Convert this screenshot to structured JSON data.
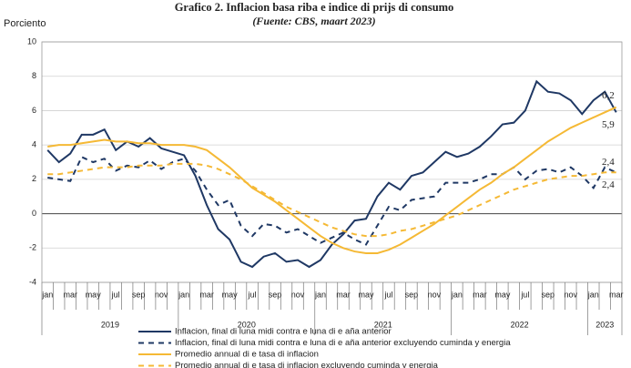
{
  "chart_data": {
    "type": "line",
    "title": "Grafico 2. Inflacion basa riba e indice di prijs di consumo",
    "subtitle": "(Fuente: CBS, maart 2023)",
    "y_label": "Porciento",
    "categories": [
      "jan",
      null,
      "mar",
      null,
      "may",
      null,
      "jul",
      null,
      "sep",
      null,
      "nov",
      null,
      "jan",
      null,
      "mar",
      null,
      "may",
      null,
      "jul",
      null,
      "sep",
      null,
      "nov",
      null,
      "jan",
      null,
      "mar",
      null,
      "may",
      null,
      "jul",
      null,
      "sep",
      null,
      "nov",
      null,
      "jan",
      null,
      "mar",
      null,
      "may",
      null,
      "jul",
      null,
      "sep",
      null,
      "nov",
      null,
      "jan",
      null,
      "mar"
    ],
    "years": [
      "2019",
      "2020",
      "2021",
      "2022",
      "2023"
    ],
    "ylim": [
      -4,
      10
    ],
    "yticks": [
      -4,
      -2,
      0,
      2,
      4,
      6,
      8,
      10
    ],
    "grid": true,
    "series": [
      {
        "name": "Inflacion, final di luna midi contra e luna di e aña anterior",
        "color": "#1f3864",
        "dash": false,
        "values": [
          3.7,
          3.0,
          3.5,
          4.6,
          4.6,
          4.9,
          3.7,
          4.2,
          3.9,
          4.4,
          3.8,
          3.6,
          3.4,
          2.2,
          0.5,
          -0.9,
          -1.5,
          -2.8,
          -3.1,
          -2.5,
          -2.3,
          -2.8,
          -2.7,
          -3.1,
          -2.7,
          -1.8,
          -1.2,
          -0.4,
          -0.3,
          1.0,
          1.8,
          1.4,
          2.2,
          2.4,
          3.0,
          3.6,
          3.3,
          3.5,
          3.9,
          4.5,
          5.2,
          5.3,
          6.0,
          7.7,
          7.1,
          7.0,
          6.6,
          5.8,
          6.6,
          7.1,
          5.9
        ],
        "value_labels": [
          null,
          null,
          null,
          null,
          null,
          null,
          null,
          null,
          null,
          null,
          null,
          null,
          null,
          null,
          null,
          null,
          null,
          null,
          null,
          null,
          null,
          null,
          null,
          null,
          null,
          null,
          null,
          null,
          null,
          null,
          null,
          null,
          null,
          null,
          null,
          null,
          null,
          null,
          null,
          null,
          null,
          null,
          null,
          null,
          null,
          null,
          null,
          null,
          null,
          null,
          "5,9"
        ]
      },
      {
        "name": "Inflacion, final di luna midi contra e luna di e aña anterior excluyendo cuminda y energia",
        "color": "#1f3864",
        "dash": true,
        "values": [
          2.1,
          2.0,
          1.9,
          3.3,
          3.0,
          3.2,
          2.5,
          2.8,
          2.7,
          3.1,
          2.6,
          3.0,
          3.2,
          2.5,
          1.4,
          0.5,
          0.8,
          -0.7,
          -1.3,
          -0.6,
          -0.7,
          -1.1,
          -0.9,
          -1.3,
          -1.7,
          -1.4,
          -1.1,
          -1.5,
          -1.8,
          -0.7,
          0.4,
          0.2,
          0.8,
          0.9,
          1.0,
          1.8,
          1.8,
          1.8,
          2.0,
          2.3,
          2.3,
          2.7,
          2.0,
          2.5,
          2.6,
          2.4,
          2.7,
          2.2,
          1.5,
          2.7,
          2.4
        ],
        "value_labels": [
          null,
          null,
          null,
          null,
          null,
          null,
          null,
          null,
          null,
          null,
          null,
          null,
          null,
          null,
          null,
          null,
          null,
          null,
          null,
          null,
          null,
          null,
          null,
          null,
          null,
          null,
          null,
          null,
          null,
          null,
          null,
          null,
          null,
          null,
          null,
          null,
          null,
          null,
          null,
          null,
          null,
          null,
          null,
          null,
          null,
          null,
          null,
          null,
          null,
          null,
          "2,4"
        ]
      },
      {
        "name": "Promedio annual di e tasa di inflacion",
        "color": "#f5b935",
        "dash": false,
        "values": [
          3.9,
          4.0,
          4.0,
          4.1,
          4.2,
          4.3,
          4.2,
          4.2,
          4.1,
          4.1,
          4.0,
          4.0,
          4.0,
          3.9,
          3.7,
          3.2,
          2.7,
          2.1,
          1.5,
          1.1,
          0.7,
          0.2,
          -0.3,
          -0.8,
          -1.3,
          -1.7,
          -2.0,
          -2.2,
          -2.3,
          -2.3,
          -2.1,
          -1.8,
          -1.4,
          -1.0,
          -0.6,
          -0.1,
          0.4,
          0.9,
          1.4,
          1.8,
          2.3,
          2.7,
          3.2,
          3.7,
          4.2,
          4.6,
          5.0,
          5.3,
          5.6,
          5.9,
          6.2
        ],
        "value_labels": [
          null,
          null,
          null,
          null,
          null,
          null,
          null,
          null,
          null,
          null,
          null,
          null,
          null,
          null,
          null,
          null,
          null,
          null,
          null,
          null,
          null,
          null,
          null,
          null,
          null,
          null,
          null,
          null,
          null,
          null,
          null,
          null,
          null,
          null,
          null,
          null,
          null,
          null,
          null,
          null,
          null,
          null,
          null,
          null,
          null,
          null,
          null,
          null,
          null,
          null,
          "6,2"
        ]
      },
      {
        "name": "Promedio annual di e tasa di inflacion excluyendo cuminda y energia",
        "color": "#f5b935",
        "dash": true,
        "values": [
          2.3,
          2.3,
          2.4,
          2.5,
          2.6,
          2.7,
          2.7,
          2.7,
          2.8,
          2.8,
          2.8,
          2.9,
          2.9,
          2.9,
          2.8,
          2.6,
          2.3,
          2.0,
          1.6,
          1.2,
          0.8,
          0.4,
          0.1,
          -0.2,
          -0.5,
          -0.8,
          -1.0,
          -1.2,
          -1.3,
          -1.3,
          -1.2,
          -1.0,
          -0.9,
          -0.7,
          -0.5,
          -0.3,
          -0.1,
          0.2,
          0.5,
          0.8,
          1.1,
          1.4,
          1.6,
          1.8,
          2.0,
          2.1,
          2.2,
          2.2,
          2.3,
          2.4,
          2.4
        ],
        "value_labels": [
          null,
          null,
          null,
          null,
          null,
          null,
          null,
          null,
          null,
          null,
          null,
          null,
          null,
          null,
          null,
          null,
          null,
          null,
          null,
          null,
          null,
          null,
          null,
          null,
          null,
          null,
          null,
          null,
          null,
          null,
          null,
          null,
          null,
          null,
          null,
          null,
          null,
          null,
          null,
          null,
          null,
          null,
          null,
          null,
          null,
          null,
          null,
          null,
          null,
          null,
          "2,4"
        ]
      }
    ]
  }
}
